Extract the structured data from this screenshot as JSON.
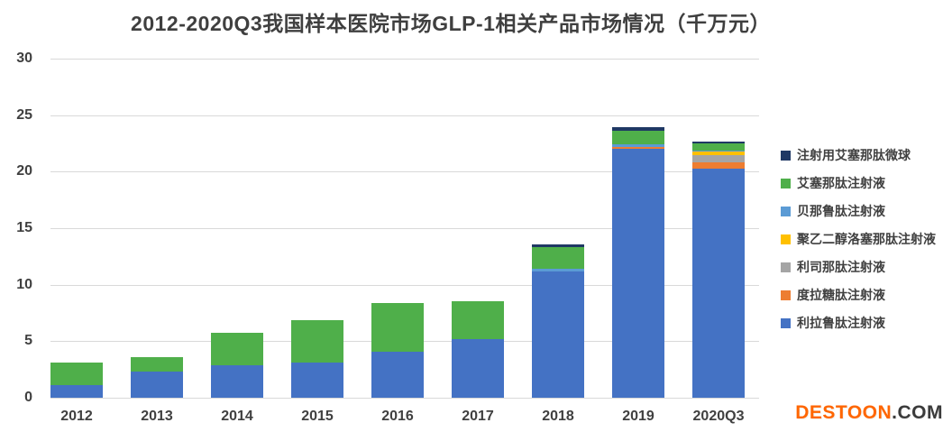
{
  "page": {
    "background": "#FFFFFF"
  },
  "chart_data": {
    "type": "bar",
    "stacked": true,
    "title": "2012-2020Q3我国样本医院市场GLP-1相关产品市场情况（千万元）",
    "unit": "千万元",
    "categories": [
      "2012",
      "2013",
      "2014",
      "2015",
      "2016",
      "2017",
      "2018",
      "2019",
      "2020Q3"
    ],
    "series": [
      {
        "name": "利拉鲁肽注射液",
        "color": "#4472C4",
        "values": [
          1.1,
          2.3,
          2.9,
          3.1,
          4.1,
          5.2,
          11.2,
          22.0,
          20.3
        ]
      },
      {
        "name": "度拉糖肽注射液",
        "color": "#ED7D31",
        "values": [
          0,
          0,
          0,
          0,
          0,
          0,
          0,
          0.15,
          0.55
        ]
      },
      {
        "name": "利司那肽注射液",
        "color": "#A5A5A5",
        "values": [
          0,
          0,
          0,
          0,
          0,
          0,
          0,
          0,
          0.6
        ]
      },
      {
        "name": "聚乙二醇洛塞那肽注射液",
        "color": "#FFC000",
        "values": [
          0,
          0,
          0,
          0,
          0,
          0,
          0,
          0,
          0.3
        ]
      },
      {
        "name": "贝那鲁肽注射液",
        "color": "#5B9BD5",
        "values": [
          0,
          0,
          0,
          0,
          0,
          0,
          0.25,
          0.3,
          0.15
        ]
      },
      {
        "name": "艾塞那肽注射液",
        "color": "#4FAF4A",
        "values": [
          2.0,
          1.3,
          2.85,
          3.8,
          4.3,
          3.3,
          1.9,
          1.2,
          0.6
        ]
      },
      {
        "name": "注射用艾塞那肽微球",
        "color": "#1F3864",
        "values": [
          0,
          0,
          0,
          0,
          0,
          0,
          0.2,
          0.25,
          0.2
        ]
      }
    ],
    "totals": [
      3.1,
      3.6,
      5.75,
      6.9,
      8.4,
      8.5,
      13.55,
      23.9,
      22.7
    ],
    "ylim": [
      0,
      30
    ],
    "yticks": [
      0,
      5,
      10,
      15,
      20,
      25,
      30
    ],
    "grid": true,
    "legend_position": "right",
    "legend_order_top_to_bottom": [
      "注射用艾塞那肽微球",
      "艾塞那肽注射液",
      "贝那鲁肽注射液",
      "聚乙二醇洛塞那肽注射液",
      "利司那肽注射液",
      "度拉糖肽注射液",
      "利拉鲁肽注射液"
    ],
    "style": {
      "grid_color": "#D9D9D9",
      "axis_text_color": "#404040",
      "title_color": "#3F3F3F"
    }
  },
  "watermark": {
    "brand": "DESTOON",
    "suffix": ".COM",
    "brand_color": "#FF6600",
    "suffix_color": "#3B3B3B"
  }
}
